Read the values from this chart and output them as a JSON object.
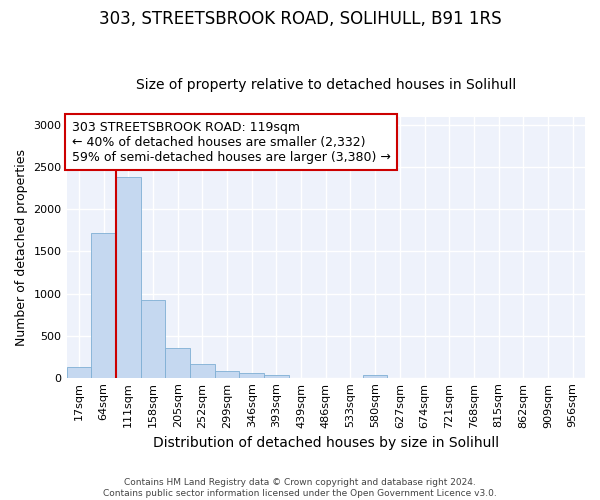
{
  "title1": "303, STREETSBROOK ROAD, SOLIHULL, B91 1RS",
  "title2": "Size of property relative to detached houses in Solihull",
  "xlabel": "Distribution of detached houses by size in Solihull",
  "ylabel": "Number of detached properties",
  "bar_labels": [
    "17sqm",
    "64sqm",
    "111sqm",
    "158sqm",
    "205sqm",
    "252sqm",
    "299sqm",
    "346sqm",
    "393sqm",
    "439sqm",
    "486sqm",
    "533sqm",
    "580sqm",
    "627sqm",
    "674sqm",
    "721sqm",
    "768sqm",
    "815sqm",
    "862sqm",
    "909sqm",
    "956sqm"
  ],
  "bar_values": [
    130,
    1720,
    2380,
    920,
    355,
    160,
    85,
    50,
    35,
    0,
    0,
    0,
    28,
    0,
    0,
    0,
    0,
    0,
    0,
    0,
    0
  ],
  "bar_color": "#c5d8f0",
  "bar_edge_color": "#7fafd4",
  "highlight_bar_index": 2,
  "highlight_color": "#cc0000",
  "annotation_text": "303 STREETSBROOK ROAD: 119sqm\n← 40% of detached houses are smaller (2,332)\n59% of semi-detached houses are larger (3,380) →",
  "annotation_box_color": "white",
  "annotation_box_edge_color": "#cc0000",
  "ylim": [
    0,
    3100
  ],
  "yticks": [
    0,
    500,
    1000,
    1500,
    2000,
    2500,
    3000
  ],
  "vline_color": "#cc0000",
  "background_color": "#eef2fb",
  "grid_color": "white",
  "footer_text": "Contains HM Land Registry data © Crown copyright and database right 2024.\nContains public sector information licensed under the Open Government Licence v3.0.",
  "title1_fontsize": 12,
  "title2_fontsize": 10,
  "xlabel_fontsize": 10,
  "ylabel_fontsize": 9,
  "tick_fontsize": 8,
  "annotation_fontsize": 9
}
